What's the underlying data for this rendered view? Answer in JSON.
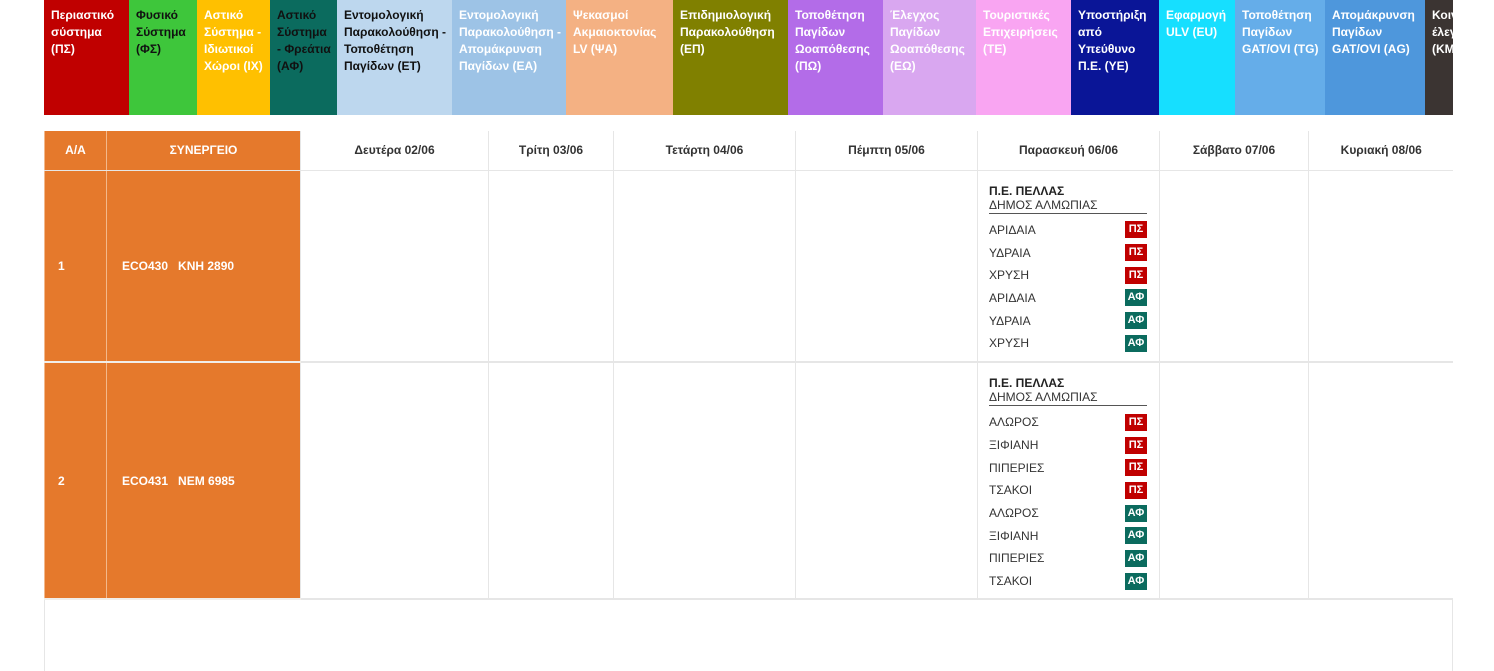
{
  "legend": [
    {
      "label": "Περιαστικό σύστημα (ΠΣ)",
      "color": "#c00000",
      "text": "#ffffff",
      "w": 85
    },
    {
      "label": "Φυσικό Σύστημα (ΦΣ)",
      "color": "#3ec63b",
      "text": "#111111",
      "w": 68
    },
    {
      "label": "Αστικό Σύστημα - Ιδιωτικοί Χώροι (ΙΧ)",
      "color": "#ffc000",
      "text": "#ffffff",
      "w": 73
    },
    {
      "label": "Αστικό Σύστημα - Φρεάτια (ΑΦ)",
      "color": "#0b6b5e",
      "text": "#111111",
      "w": 67
    },
    {
      "label": "Εντομολογική Παρακολούθηση - Τοποθέτηση Παγίδων (ΕΤ)",
      "color": "#bdd7ee",
      "text": "#111111",
      "w": 115
    },
    {
      "label": "Εντομολογική Παρακολούθηση - Απομάκρυνση Παγίδων (ΕΑ)",
      "color": "#9dc3e6",
      "text": "#ffffff",
      "w": 114
    },
    {
      "label": "Ψεκασμοί Ακμαιοκτονίας LV (ΨΑ)",
      "color": "#f4b183",
      "text": "#ffffff",
      "w": 107
    },
    {
      "label": "Επιδημιολογική Παρακολούθηση (ΕΠ)",
      "color": "#808000",
      "text": "#ffffff",
      "w": 115
    },
    {
      "label": "Τοποθέτηση Παγίδων Ωοαπόθεσης (ΠΩ)",
      "color": "#b36ce8",
      "text": "#ffffff",
      "w": 95
    },
    {
      "label": "Έλεγχος Παγίδων Ωοαπόθεσης (ΕΩ)",
      "color": "#d9a7f0",
      "text": "#ffffff",
      "w": 93
    },
    {
      "label": "Τουριστικές Επιχειρήσεις (ΤΕ)",
      "color": "#f9a5f2",
      "text": "#ffffff",
      "w": 95
    },
    {
      "label": "Υποστήριξη από Υπεύθυνο Π.Ε. (ΥΕ)",
      "color": "#0a1597",
      "text": "#ffffff",
      "w": 88
    },
    {
      "label": "Εφαρμογή ULV (EU)",
      "color": "#16dfff",
      "text": "#ffffff",
      "w": 76
    },
    {
      "label": "Τοποθέτηση Παγίδων GAT/OVI (TG)",
      "color": "#65ade9",
      "text": "#ffffff",
      "w": 90
    },
    {
      "label": "Απομάκρυνση Παγίδων GAT/OVI (AG)",
      "color": "#4e97dc",
      "text": "#ffffff",
      "w": 100
    },
    {
      "label": "Κοινοτικός έλεγχος (ΚΜ)",
      "color": "#3b3432",
      "text": "#ffffff",
      "w": 33
    }
  ],
  "table": {
    "headers": [
      "Α/Α",
      "ΣΥΝΕΡΓΕΙΟ",
      "Δευτέρα 02/06",
      "Τρίτη 03/06",
      "Τετάρτη 04/06",
      "Πέμπτη 05/06",
      "Παρασκευή 06/06",
      "Σάββατο 07/06",
      "Κυριακή 08/06"
    ],
    "rows": [
      {
        "aa": "1",
        "team": "ECO430   ΚΝΗ 2890",
        "friday": {
          "region": "Π.Ε. ΠΕΛΛΑΣ",
          "municipality": "ΔΗΜΟΣ ΑΛΜΩΠΙΑΣ",
          "entries": [
            {
              "place": "ΑΡΙΔΑΙΑ",
              "code": "ΠΣ",
              "color": "#c00000"
            },
            {
              "place": "ΥΔΡΑΙΑ",
              "code": "ΠΣ",
              "color": "#c00000"
            },
            {
              "place": "ΧΡΥΣΗ",
              "code": "ΠΣ",
              "color": "#c00000"
            },
            {
              "place": "ΑΡΙΔΑΙΑ",
              "code": "ΑΦ",
              "color": "#0b6b5e"
            },
            {
              "place": "ΥΔΡΑΙΑ",
              "code": "ΑΦ",
              "color": "#0b6b5e"
            },
            {
              "place": "ΧΡΥΣΗ",
              "code": "ΑΦ",
              "color": "#0b6b5e"
            }
          ]
        }
      },
      {
        "aa": "2",
        "team": "ECO431   ΝΕΜ 6985",
        "friday": {
          "region": "Π.Ε. ΠΕΛΛΑΣ",
          "municipality": "ΔΗΜΟΣ ΑΛΜΩΠΙΑΣ",
          "entries": [
            {
              "place": "ΑΛΩΡΟΣ",
              "code": "ΠΣ",
              "color": "#c00000"
            },
            {
              "place": "ΞΙΦΙΑΝΗ",
              "code": "ΠΣ",
              "color": "#c00000"
            },
            {
              "place": "ΠΙΠΕΡΙΕΣ",
              "code": "ΠΣ",
              "color": "#c00000"
            },
            {
              "place": "ΤΣΑΚΟΙ",
              "code": "ΠΣ",
              "color": "#c00000"
            },
            {
              "place": "ΑΛΩΡΟΣ",
              "code": "ΑΦ",
              "color": "#0b6b5e"
            },
            {
              "place": "ΞΙΦΙΑΝΗ",
              "code": "ΑΦ",
              "color": "#0b6b5e"
            },
            {
              "place": "ΠΙΠΕΡΙΕΣ",
              "code": "ΑΦ",
              "color": "#0b6b5e"
            },
            {
              "place": "ΤΣΑΚΟΙ",
              "code": "ΑΦ",
              "color": "#0b6b5e"
            }
          ]
        }
      }
    ]
  }
}
